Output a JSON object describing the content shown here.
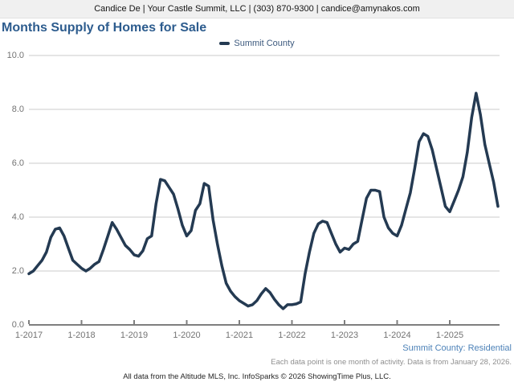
{
  "header": {
    "contact_line": "Candice De | Your Castle Summit, LLC | (303) 870-9300 | candice@amynakos.com"
  },
  "title": "Months Supply of Homes for Sale",
  "legend": {
    "label": "Summit County",
    "swatch_color": "#243a52"
  },
  "footer": {
    "market_label": "Summit County: Residential",
    "data_note": "Each data point is one month of activity. Data is from January 28, 2026.",
    "attribution": "All data from the Altitude MLS, Inc. InfoSparks © 2026 ShowingTime Plus, LLC."
  },
  "chart_data": {
    "type": "line",
    "title": "Months Supply of Homes for Sale",
    "x_unit": "month",
    "x_range": [
      "2017-01",
      "2025-12"
    ],
    "x_tick_labels": [
      "1-2017",
      "1-2018",
      "1-2019",
      "1-2020",
      "1-2021",
      "1-2022",
      "1-2023",
      "1-2024",
      "1-2025"
    ],
    "y_tick_labels": [
      "0.0",
      "2.0",
      "4.0",
      "6.0",
      "8.0",
      "10.0"
    ],
    "ylim": [
      0,
      10
    ],
    "grid": true,
    "legend_position": "top-center",
    "axis_color": "#7f7f7f",
    "gridline_color": "#cbcbcb",
    "series": [
      {
        "name": "Summit County",
        "color": "#243a52",
        "values": [
          1.9,
          2.0,
          2.2,
          2.4,
          2.7,
          3.25,
          3.55,
          3.6,
          3.3,
          2.85,
          2.4,
          2.25,
          2.1,
          2.0,
          2.1,
          2.25,
          2.35,
          2.8,
          3.3,
          3.8,
          3.55,
          3.25,
          2.95,
          2.8,
          2.6,
          2.55,
          2.75,
          3.2,
          3.3,
          4.5,
          5.4,
          5.35,
          5.1,
          4.85,
          4.3,
          3.7,
          3.3,
          3.5,
          4.25,
          4.5,
          5.25,
          5.15,
          3.9,
          3.0,
          2.2,
          1.55,
          1.25,
          1.05,
          0.9,
          0.8,
          0.7,
          0.75,
          0.9,
          1.15,
          1.35,
          1.2,
          0.95,
          0.75,
          0.6,
          0.75,
          0.75,
          0.78,
          0.85,
          1.9,
          2.7,
          3.4,
          3.75,
          3.85,
          3.8,
          3.4,
          3.0,
          2.7,
          2.85,
          2.8,
          3.0,
          3.1,
          3.9,
          4.7,
          5.0,
          5.0,
          4.95,
          4.0,
          3.6,
          3.4,
          3.3,
          3.7,
          4.3,
          4.9,
          5.8,
          6.8,
          7.1,
          7.0,
          6.5,
          5.8,
          5.1,
          4.4,
          4.2,
          4.6,
          5.0,
          5.5,
          6.4,
          7.7,
          8.6,
          7.8,
          6.7,
          6.0,
          5.3,
          4.4
        ]
      }
    ]
  }
}
